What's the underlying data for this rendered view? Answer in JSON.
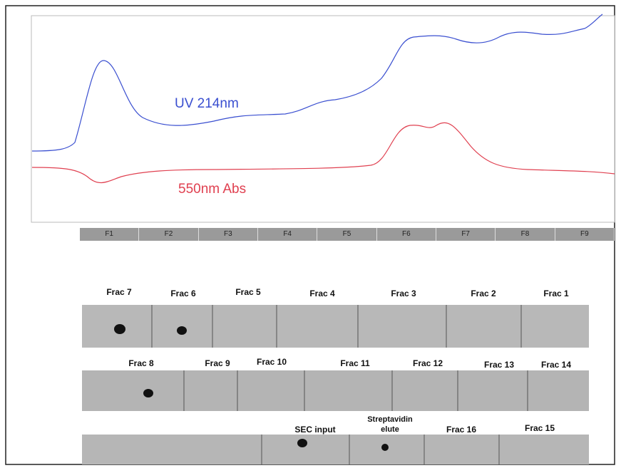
{
  "chromatogram": {
    "traces": [
      {
        "label": "UV 214nm",
        "color": "#3a4fd0"
      },
      {
        "label": "550nm Abs",
        "color": "#e04050"
      }
    ],
    "fractions": [
      "F1",
      "F2",
      "F3",
      "F4",
      "F5",
      "F6",
      "F7",
      "F8",
      "F9"
    ]
  },
  "blots": [
    {
      "labels": [
        "Frac 7",
        "Frac 6",
        "Frac 5",
        "Frac 4",
        "Frac 3",
        "Frac 2",
        "Frac 1"
      ]
    },
    {
      "labels": [
        "Frac 8",
        "Frac 9",
        "Frac 10",
        "Frac 11",
        "Frac 12",
        "Frac 13",
        "Frac 14"
      ]
    },
    {
      "labels": [
        "SEC input",
        "Streptavidin elute",
        "Frac 16",
        "Frac 15"
      ]
    }
  ]
}
